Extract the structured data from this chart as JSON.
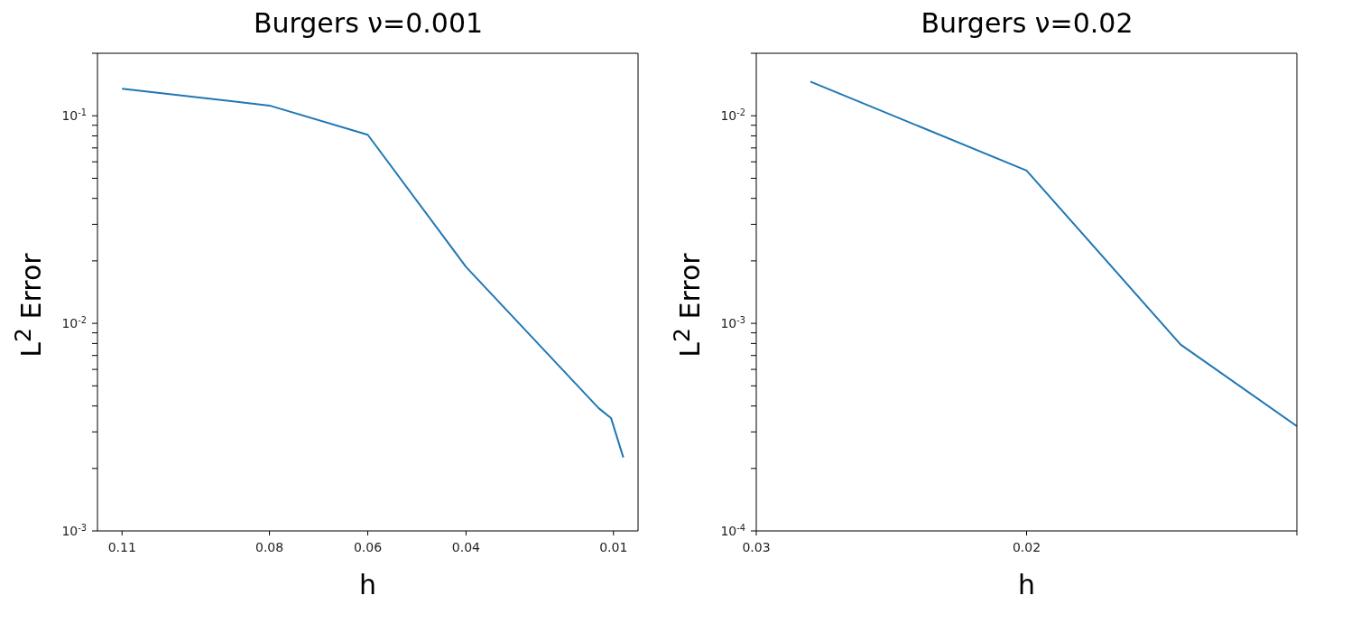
{
  "chart_data": [
    {
      "type": "line",
      "title": "Burgers ν=0.001",
      "xlabel": "h",
      "ylabel": "L$^{2}$ Error",
      "log": "y",
      "grid": false,
      "legend": false,
      "marker": "none",
      "line_style": "solid",
      "x": [
        0.11,
        0.08,
        0.06,
        0.04,
        0.013,
        0.0105,
        0.008
      ],
      "series": [
        {
          "color": "#1f77b4",
          "values": [
            0.135,
            0.112,
            0.081,
            0.0187,
            0.0039,
            0.0035,
            0.00226
          ]
        }
      ],
      "xlim": [
        0.115,
        0.005
      ],
      "xticks": [
        0.11,
        0.08,
        0.06,
        0.04,
        0.01
      ],
      "ylim": [
        0.001,
        0.2
      ],
      "yticks": [
        {
          "value": 0.001,
          "label": "10$^{-3}$"
        },
        {
          "value": 0.002,
          "label": null
        },
        {
          "value": 0.003,
          "label": null
        },
        {
          "value": 0.004,
          "label": null
        },
        {
          "value": 0.005,
          "label": null
        },
        {
          "value": 0.006,
          "label": null
        },
        {
          "value": 0.007,
          "label": null
        },
        {
          "value": 0.008,
          "label": null
        },
        {
          "value": 0.009,
          "label": null
        },
        {
          "value": 0.01,
          "label": "10$^{-2}$"
        },
        {
          "value": 0.02,
          "label": null
        },
        {
          "value": 0.03,
          "label": null
        },
        {
          "value": 0.04,
          "label": null
        },
        {
          "value": 0.05,
          "label": null
        },
        {
          "value": 0.06,
          "label": null
        },
        {
          "value": 0.07,
          "label": null
        },
        {
          "value": 0.08,
          "label": null
        },
        {
          "value": 0.09,
          "label": null
        },
        {
          "value": 0.1,
          "label": "10$^{-1}$"
        },
        {
          "value": 0.2,
          "label": null
        }
      ]
    },
    {
      "type": "line",
      "title": "Burgers ν=0.02",
      "xlabel": "h",
      "ylabel": "L$^{2}$ Error",
      "log": "y",
      "grid": false,
      "legend": false,
      "marker": "none",
      "line_style": "solid",
      "x": [
        0.028,
        0.02,
        0.0143,
        0.01
      ],
      "series": [
        {
          "color": "#1f77b4",
          "values": [
            0.0146,
            0.00545,
            0.00079,
            0.00032
          ]
        }
      ],
      "xlim": [
        0.03,
        0.01
      ],
      "xticks": [
        0.03,
        0.02,
        {
          "value": 0.01,
          "label": null
        }
      ],
      "ylim": [
        0.0001,
        0.02
      ],
      "yticks": [
        {
          "value": 0.0001,
          "label": "10$^{-4}$"
        },
        {
          "value": 0.0002,
          "label": null
        },
        {
          "value": 0.0003,
          "label": null
        },
        {
          "value": 0.0004,
          "label": null
        },
        {
          "value": 0.0005,
          "label": null
        },
        {
          "value": 0.0006,
          "label": null
        },
        {
          "value": 0.0007,
          "label": null
        },
        {
          "value": 0.0008,
          "label": null
        },
        {
          "value": 0.0009,
          "label": null
        },
        {
          "value": 0.001,
          "label": "10$^{-3}$"
        },
        {
          "value": 0.002,
          "label": null
        },
        {
          "value": 0.003,
          "label": null
        },
        {
          "value": 0.004,
          "label": null
        },
        {
          "value": 0.005,
          "label": null
        },
        {
          "value": 0.006,
          "label": null
        },
        {
          "value": 0.007,
          "label": null
        },
        {
          "value": 0.008,
          "label": null
        },
        {
          "value": 0.009,
          "label": null
        },
        {
          "value": 0.01,
          "label": "10$^{-2}$"
        },
        {
          "value": 0.02,
          "label": null
        }
      ]
    }
  ]
}
